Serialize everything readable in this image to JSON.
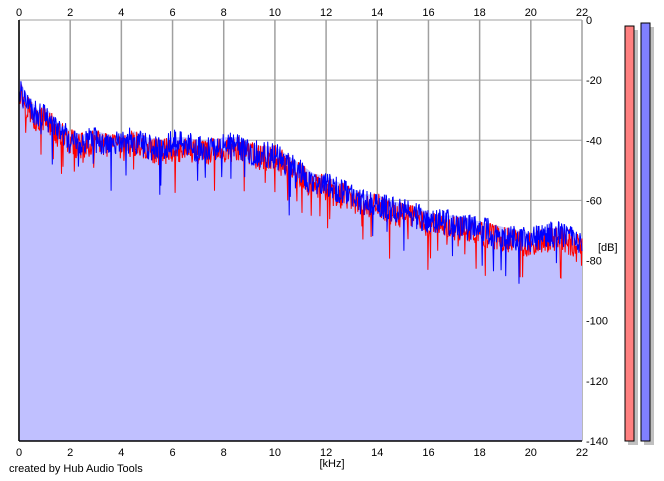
{
  "credit": "created by Hub Audio Tools",
  "chart_data": {
    "type": "line",
    "xlabel": "[kHz]",
    "ylabel": "[dB]",
    "xlim": [
      0,
      22
    ],
    "ylim": [
      -140,
      0
    ],
    "x_ticks": [
      0,
      2,
      4,
      6,
      8,
      10,
      12,
      14,
      16,
      18,
      20,
      22
    ],
    "y_ticks": [
      0,
      -20,
      -40,
      -60,
      -80,
      -100,
      -120,
      -140
    ],
    "grid": true,
    "fill_color": "#c0c0ff",
    "series": [
      {
        "color": "#ff0000",
        "x": [
          0,
          0.25,
          0.5,
          0.75,
          1,
          1.25,
          1.5,
          1.75,
          2,
          2.5,
          3,
          3.5,
          4,
          4.5,
          5,
          5.5,
          6,
          6.5,
          7,
          7.5,
          8,
          8.5,
          9,
          9.5,
          10,
          10.5,
          11,
          11.5,
          12,
          12.5,
          13,
          13.5,
          14,
          14.5,
          15,
          15.5,
          16,
          16.5,
          17,
          17.5,
          18,
          18.5,
          19,
          19.5,
          20,
          20.5,
          21,
          21.5,
          22
        ],
        "values": [
          -22,
          -27,
          -30,
          -33,
          -32,
          -34,
          -37,
          -38,
          -40,
          -41,
          -40,
          -41,
          -42,
          -40,
          -42,
          -43,
          -42,
          -42,
          -43,
          -43,
          -42,
          -42,
          -44,
          -45,
          -45,
          -48,
          -51,
          -54,
          -55,
          -57,
          -59,
          -61,
          -61,
          -63,
          -64,
          -65,
          -67,
          -68,
          -68,
          -69,
          -70,
          -71,
          -72,
          -73,
          -74,
          -73,
          -72,
          -73,
          -75
        ]
      },
      {
        "color": "#0000ff",
        "x": [
          0,
          0.25,
          0.5,
          0.75,
          1,
          1.25,
          1.5,
          1.75,
          2,
          2.5,
          3,
          3.5,
          4,
          4.5,
          5,
          5.5,
          6,
          6.5,
          7,
          7.5,
          8,
          8.5,
          9,
          9.5,
          10,
          10.5,
          11,
          11.5,
          12,
          12.5,
          13,
          13.5,
          14,
          14.5,
          15,
          15.5,
          16,
          16.5,
          17,
          17.5,
          18,
          18.5,
          19,
          19.5,
          20,
          20.5,
          21,
          21.5,
          22
        ],
        "values": [
          -21,
          -26,
          -29,
          -31,
          -31,
          -33,
          -36,
          -37,
          -39,
          -40,
          -39,
          -40,
          -40,
          -39,
          -41,
          -42,
          -40,
          -40,
          -42,
          -42,
          -41,
          -41,
          -43,
          -44,
          -44,
          -47,
          -50,
          -53,
          -54,
          -56,
          -58,
          -60,
          -60,
          -62,
          -63,
          -64,
          -66,
          -66,
          -67,
          -68,
          -68,
          -70,
          -71,
          -72,
          -72,
          -71,
          -70,
          -71,
          -73
        ]
      }
    ],
    "level_meters": [
      {
        "color": "#ff8080",
        "value": -2
      },
      {
        "color": "#8080ff",
        "value": -1
      }
    ]
  }
}
